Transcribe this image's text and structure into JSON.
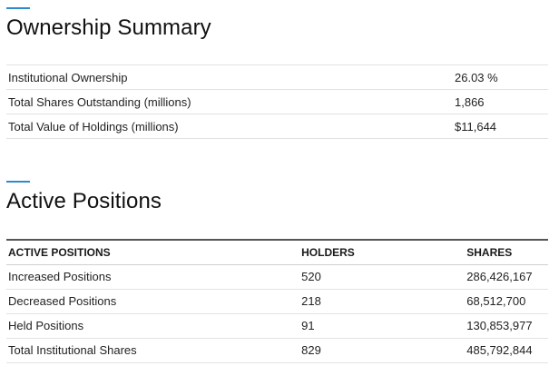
{
  "ownership_summary": {
    "title": "Ownership Summary",
    "rows": [
      {
        "label": "Institutional Ownership",
        "value": "26.03 %"
      },
      {
        "label": "Total Shares Outstanding (millions)",
        "value": "1,866"
      },
      {
        "label": "Total Value of Holdings (millions)",
        "value": "$11,644"
      }
    ]
  },
  "active_positions": {
    "title": "Active Positions",
    "headers": [
      "ACTIVE POSITIONS",
      "HOLDERS",
      "SHARES"
    ],
    "rows": [
      {
        "label": "Increased Positions",
        "holders": "520",
        "shares": "286,426,167"
      },
      {
        "label": "Decreased Positions",
        "holders": "218",
        "shares": "68,512,700"
      },
      {
        "label": "Held Positions",
        "holders": "91",
        "shares": "130,853,977"
      },
      {
        "label": "Total Institutional Shares",
        "holders": "829",
        "shares": "485,792,844"
      }
    ]
  },
  "colors": {
    "accent": "#2a8ccf"
  }
}
